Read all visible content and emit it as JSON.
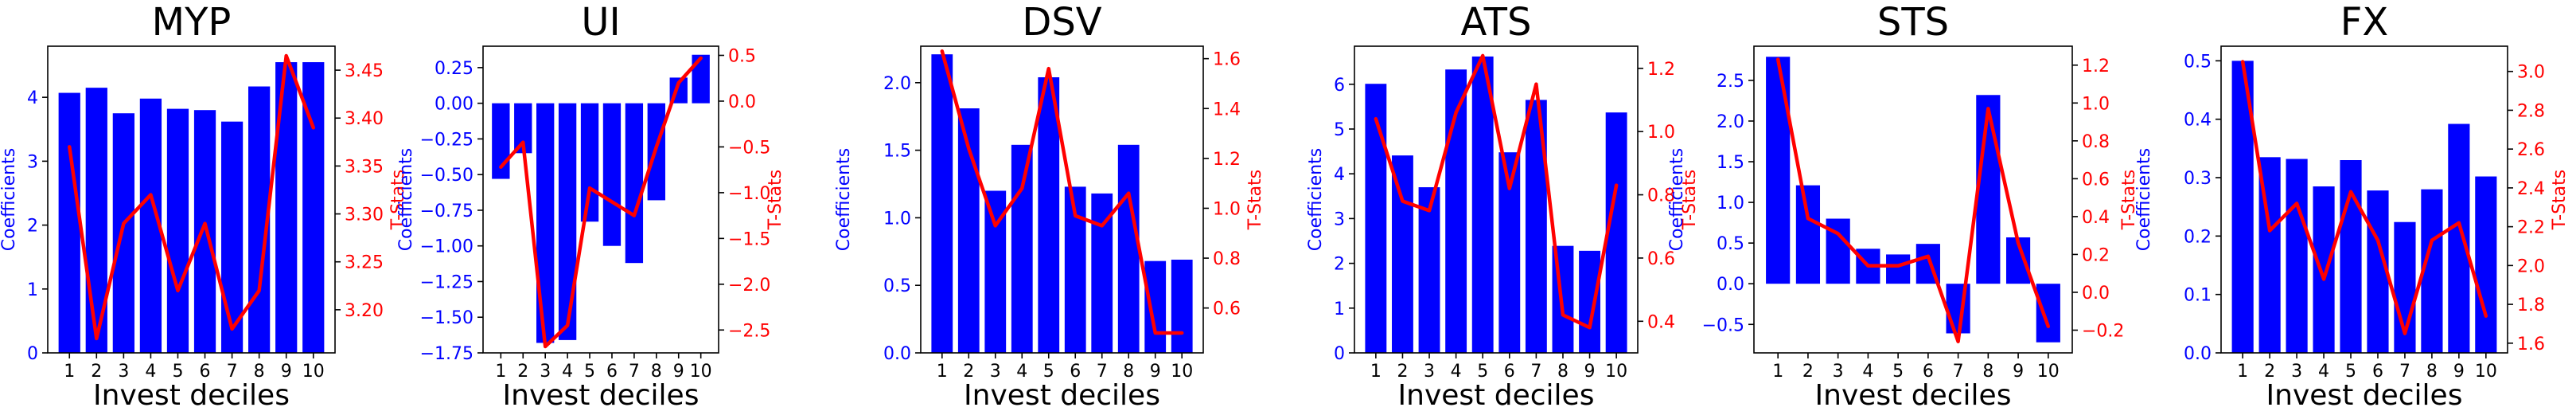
{
  "figure": {
    "colors": {
      "bars": "#0000ff",
      "line": "#ff0000",
      "left_axis": "#0000ff",
      "right_axis": "#ff0000",
      "frame": "#000000"
    }
  },
  "chart_data": [
    {
      "type": "bar",
      "title": "MYP",
      "xlabel": "Invest deciles",
      "ylabel": "Coefficients",
      "ylabel_right": "T-Stats",
      "categories": [
        "1",
        "2",
        "3",
        "4",
        "5",
        "6",
        "7",
        "8",
        "9",
        "10"
      ],
      "ylim": [
        0,
        4.8
      ],
      "yticks": [
        0,
        1,
        2,
        3,
        4
      ],
      "ylim_right": [
        3.155,
        3.475
      ],
      "yticks_right": [
        3.2,
        3.25,
        3.3,
        3.35,
        3.4,
        3.45
      ],
      "ytick_decimals": 0,
      "ytick_right_decimals": 2,
      "series": [
        {
          "name": "Coefficients",
          "kind": "bar",
          "values": [
            4.07,
            4.15,
            3.75,
            3.98,
            3.82,
            3.8,
            3.62,
            4.17,
            4.55,
            4.55
          ]
        },
        {
          "name": "T-Stats",
          "kind": "line",
          "axis": "right",
          "values": [
            3.37,
            3.17,
            3.29,
            3.32,
            3.22,
            3.29,
            3.18,
            3.22,
            3.465,
            3.39
          ]
        }
      ]
    },
    {
      "type": "bar",
      "title": "UI",
      "xlabel": "Invest deciles",
      "ylabel": "Coefficients",
      "ylabel_right": "T-Stats",
      "categories": [
        "1",
        "2",
        "3",
        "4",
        "5",
        "6",
        "7",
        "8",
        "9",
        "10"
      ],
      "ylim": [
        -1.75,
        0.4
      ],
      "yticks": [
        -1.75,
        -1.5,
        -1.25,
        -1.0,
        -0.75,
        -0.5,
        -0.25,
        0.0,
        0.25
      ],
      "ylim_right": [
        -2.75,
        0.6
      ],
      "yticks_right": [
        -2.5,
        -2.0,
        -1.5,
        -1.0,
        -0.5,
        0.0,
        0.5
      ],
      "ytick_decimals": 2,
      "ytick_right_decimals": 1,
      "series": [
        {
          "name": "Coefficients",
          "kind": "bar",
          "values": [
            -0.53,
            -0.35,
            -1.68,
            -1.66,
            -0.83,
            -1.0,
            -1.12,
            -0.68,
            0.18,
            0.34
          ]
        },
        {
          "name": "T-Stats",
          "kind": "line",
          "axis": "right",
          "values": [
            -0.72,
            -0.45,
            -2.68,
            -2.45,
            -0.95,
            -1.1,
            -1.25,
            -0.5,
            0.2,
            0.47
          ]
        }
      ]
    },
    {
      "type": "bar",
      "title": "DSV",
      "xlabel": "Invest deciles",
      "ylabel": "Coefficients",
      "ylabel_right": "T-Stats",
      "categories": [
        "1",
        "2",
        "3",
        "4",
        "5",
        "6",
        "7",
        "8",
        "9",
        "10"
      ],
      "ylim": [
        0,
        2.27
      ],
      "yticks": [
        0.0,
        0.5,
        1.0,
        1.5,
        2.0
      ],
      "ylim_right": [
        0.42,
        1.65
      ],
      "yticks_right": [
        0.6,
        0.8,
        1.0,
        1.2,
        1.4,
        1.6
      ],
      "ytick_decimals": 1,
      "ytick_right_decimals": 1,
      "series": [
        {
          "name": "Coefficients",
          "kind": "bar",
          "values": [
            2.21,
            1.81,
            1.2,
            1.54,
            2.04,
            1.23,
            1.18,
            1.54,
            0.68,
            0.69
          ]
        },
        {
          "name": "T-Stats",
          "kind": "line",
          "axis": "right",
          "values": [
            1.63,
            1.24,
            0.93,
            1.08,
            1.56,
            0.97,
            0.93,
            1.06,
            0.5,
            0.5
          ]
        }
      ]
    },
    {
      "type": "bar",
      "title": "ATS",
      "xlabel": "Invest deciles",
      "ylabel": "Coefficients",
      "ylabel_right": "T-Stats",
      "categories": [
        "1",
        "2",
        "3",
        "4",
        "5",
        "6",
        "7",
        "8",
        "9",
        "10"
      ],
      "ylim": [
        0,
        6.85
      ],
      "yticks": [
        0,
        1,
        2,
        3,
        4,
        5,
        6
      ],
      "ylim_right": [
        0.3,
        1.27
      ],
      "yticks_right": [
        0.4,
        0.6,
        0.8,
        1.0,
        1.2
      ],
      "ytick_decimals": 0,
      "ytick_right_decimals": 1,
      "series": [
        {
          "name": "Coefficients",
          "kind": "bar",
          "values": [
            6.01,
            4.41,
            3.7,
            6.33,
            6.62,
            4.48,
            5.65,
            2.39,
            2.28,
            5.37
          ]
        },
        {
          "name": "T-Stats",
          "kind": "line",
          "axis": "right",
          "values": [
            1.04,
            0.78,
            0.75,
            1.06,
            1.24,
            0.82,
            1.15,
            0.42,
            0.38,
            0.83
          ]
        }
      ]
    },
    {
      "type": "bar",
      "title": "STS",
      "xlabel": "Invest deciles",
      "ylabel": "Coefficients",
      "ylabel_right": "T-Stats",
      "categories": [
        "1",
        "2",
        "3",
        "4",
        "5",
        "6",
        "7",
        "8",
        "9",
        "10"
      ],
      "ylim": [
        -0.85,
        2.92
      ],
      "yticks": [
        -0.5,
        0.0,
        0.5,
        1.0,
        1.5,
        2.0,
        2.5
      ],
      "ylim_right": [
        -0.32,
        1.3
      ],
      "yticks_right": [
        -0.2,
        0.0,
        0.2,
        0.4,
        0.6,
        0.8,
        1.0,
        1.2
      ],
      "ytick_decimals": 1,
      "ytick_right_decimals": 1,
      "series": [
        {
          "name": "Coefficients",
          "kind": "bar",
          "values": [
            2.79,
            1.21,
            0.8,
            0.43,
            0.36,
            0.49,
            -0.61,
            2.32,
            0.57,
            -0.72
          ]
        },
        {
          "name": "T-Stats",
          "kind": "line",
          "axis": "right",
          "values": [
            1.23,
            0.39,
            0.31,
            0.14,
            0.14,
            0.19,
            -0.26,
            0.97,
            0.26,
            -0.18
          ]
        }
      ]
    },
    {
      "type": "bar",
      "title": "FX",
      "xlabel": "Invest deciles",
      "ylabel": "Coefficients",
      "ylabel_right": "T-Stats",
      "categories": [
        "1",
        "2",
        "3",
        "4",
        "5",
        "6",
        "7",
        "8",
        "9",
        "10"
      ],
      "ylim": [
        0,
        0.525
      ],
      "yticks": [
        0.0,
        0.1,
        0.2,
        0.3,
        0.4,
        0.5
      ],
      "ylim_right": [
        1.55,
        3.13
      ],
      "yticks_right": [
        1.6,
        1.8,
        2.0,
        2.2,
        2.4,
        2.6,
        2.8,
        3.0
      ],
      "ytick_decimals": 1,
      "ytick_right_decimals": 1,
      "series": [
        {
          "name": "Coefficients",
          "kind": "bar",
          "values": [
            0.5,
            0.335,
            0.332,
            0.285,
            0.33,
            0.278,
            0.224,
            0.28,
            0.392,
            0.302
          ]
        },
        {
          "name": "T-Stats",
          "kind": "line",
          "axis": "right",
          "values": [
            3.05,
            2.18,
            2.32,
            1.93,
            2.38,
            2.13,
            1.65,
            2.13,
            2.22,
            1.74
          ]
        }
      ]
    }
  ]
}
